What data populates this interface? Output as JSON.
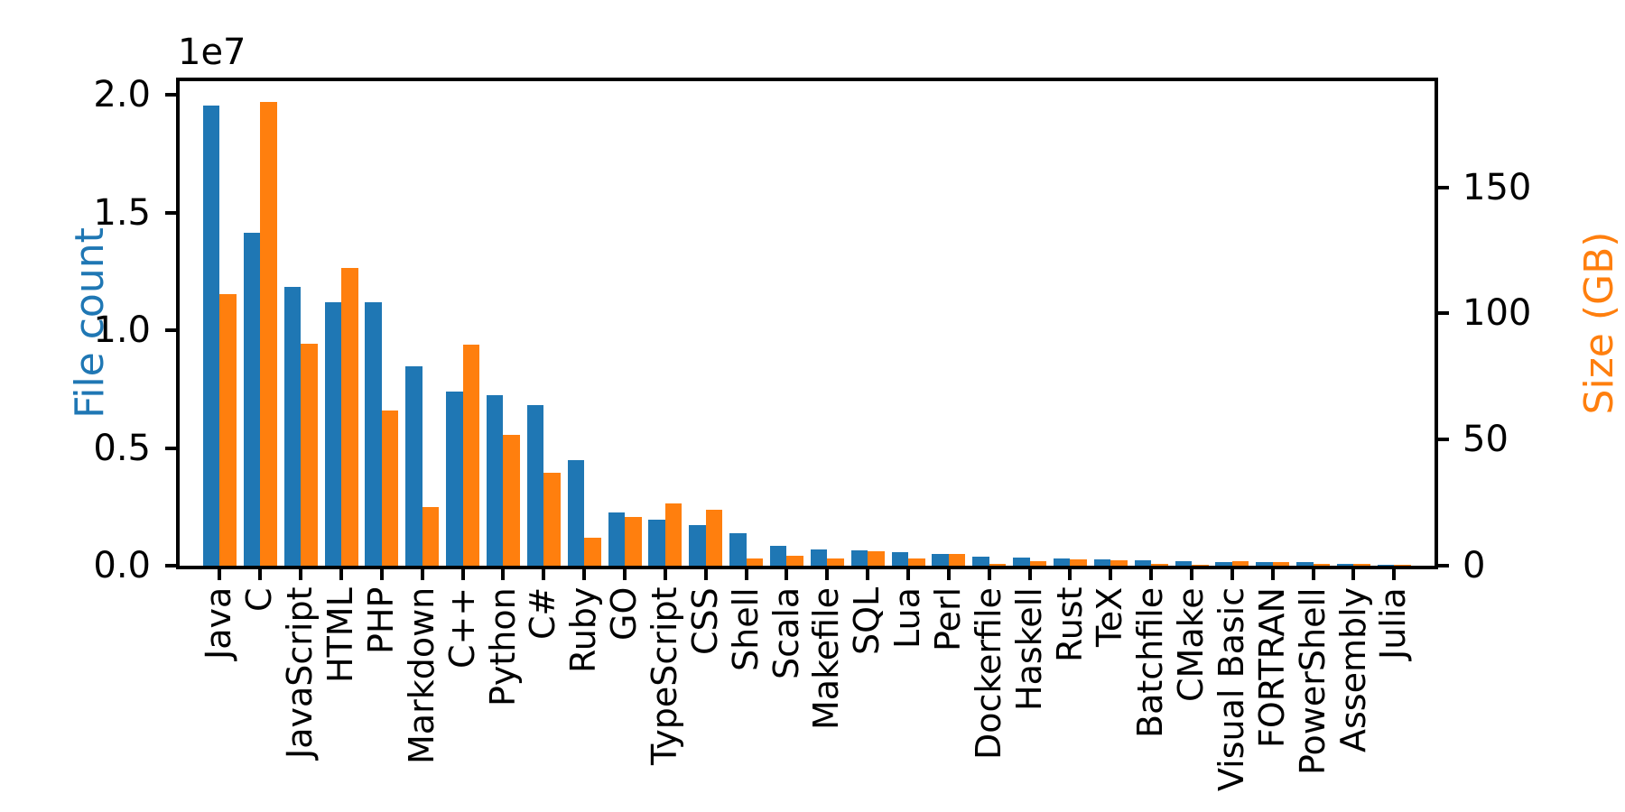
{
  "figure": {
    "background": "#ffffff"
  },
  "colors": {
    "file_count_blue": "#1f77b4",
    "size_orange": "#ff7f0e",
    "axis_black": "#000000"
  },
  "chart_data": {
    "type": "bar",
    "title": "",
    "xlabel": "",
    "ylabel_left": "File count",
    "ylabel_right": "Size (GB)",
    "offset_text": "1e7",
    "grid": false,
    "legend": "none",
    "categories": [
      "Java",
      "C",
      "JavaScript",
      "HTML",
      "PHP",
      "Markdown",
      "C++",
      "Python",
      "C#",
      "Ruby",
      "GO",
      "TypeScript",
      "CSS",
      "Shell",
      "Scala",
      "Makefile",
      "SQL",
      "Lua",
      "Perl",
      "Dockerfile",
      "Haskell",
      "Rust",
      "TeX",
      "Batchfile",
      "CMake",
      "Visual Basic",
      "FORTRAN",
      "PowerShell",
      "Assembly",
      "Julia"
    ],
    "series": [
      {
        "name": "File count",
        "axis": "left",
        "color": "#1f77b4",
        "values": [
          19548190,
          14143113,
          11839883,
          11178557,
          11177610,
          8464626,
          7380520,
          7226626,
          6811652,
          4473331,
          2265436,
          1940406,
          1734406,
          1385648,
          835755,
          679430,
          656671,
          578554,
          497949,
          366505,
          340057,
          322431,
          251015,
          236945,
          175282,
          155652,
          142038,
          136846,
          82905,
          58317
        ]
      },
      {
        "name": "Size (GB)",
        "axis": "right",
        "color": "#ff7f0e",
        "values": [
          107.7,
          183.83,
          87.82,
          118.12,
          61.41,
          23.09,
          87.73,
          52.03,
          36.83,
          10.95,
          19.28,
          24.59,
          22.22,
          3.01,
          3.87,
          2.92,
          5.67,
          2.81,
          4.7,
          0.71,
          1.85,
          2.68,
          2.15,
          0.7,
          0.54,
          1.91,
          1.62,
          0.69,
          0.78,
          0.29
        ]
      }
    ],
    "ylim_left": [
      0,
      20575000
    ],
    "ylim_right": [
      0,
      192
    ],
    "yticks_left": [
      {
        "value": 0,
        "label": "0.0"
      },
      {
        "value": 5000000,
        "label": "0.5"
      },
      {
        "value": 10000000,
        "label": "1.0"
      },
      {
        "value": 15000000,
        "label": "1.5"
      },
      {
        "value": 20000000,
        "label": "2.0"
      }
    ],
    "yticks_right": [
      {
        "value": 0,
        "label": "0"
      },
      {
        "value": 50,
        "label": "50"
      },
      {
        "value": 100,
        "label": "100"
      },
      {
        "value": 150,
        "label": "150"
      }
    ]
  }
}
